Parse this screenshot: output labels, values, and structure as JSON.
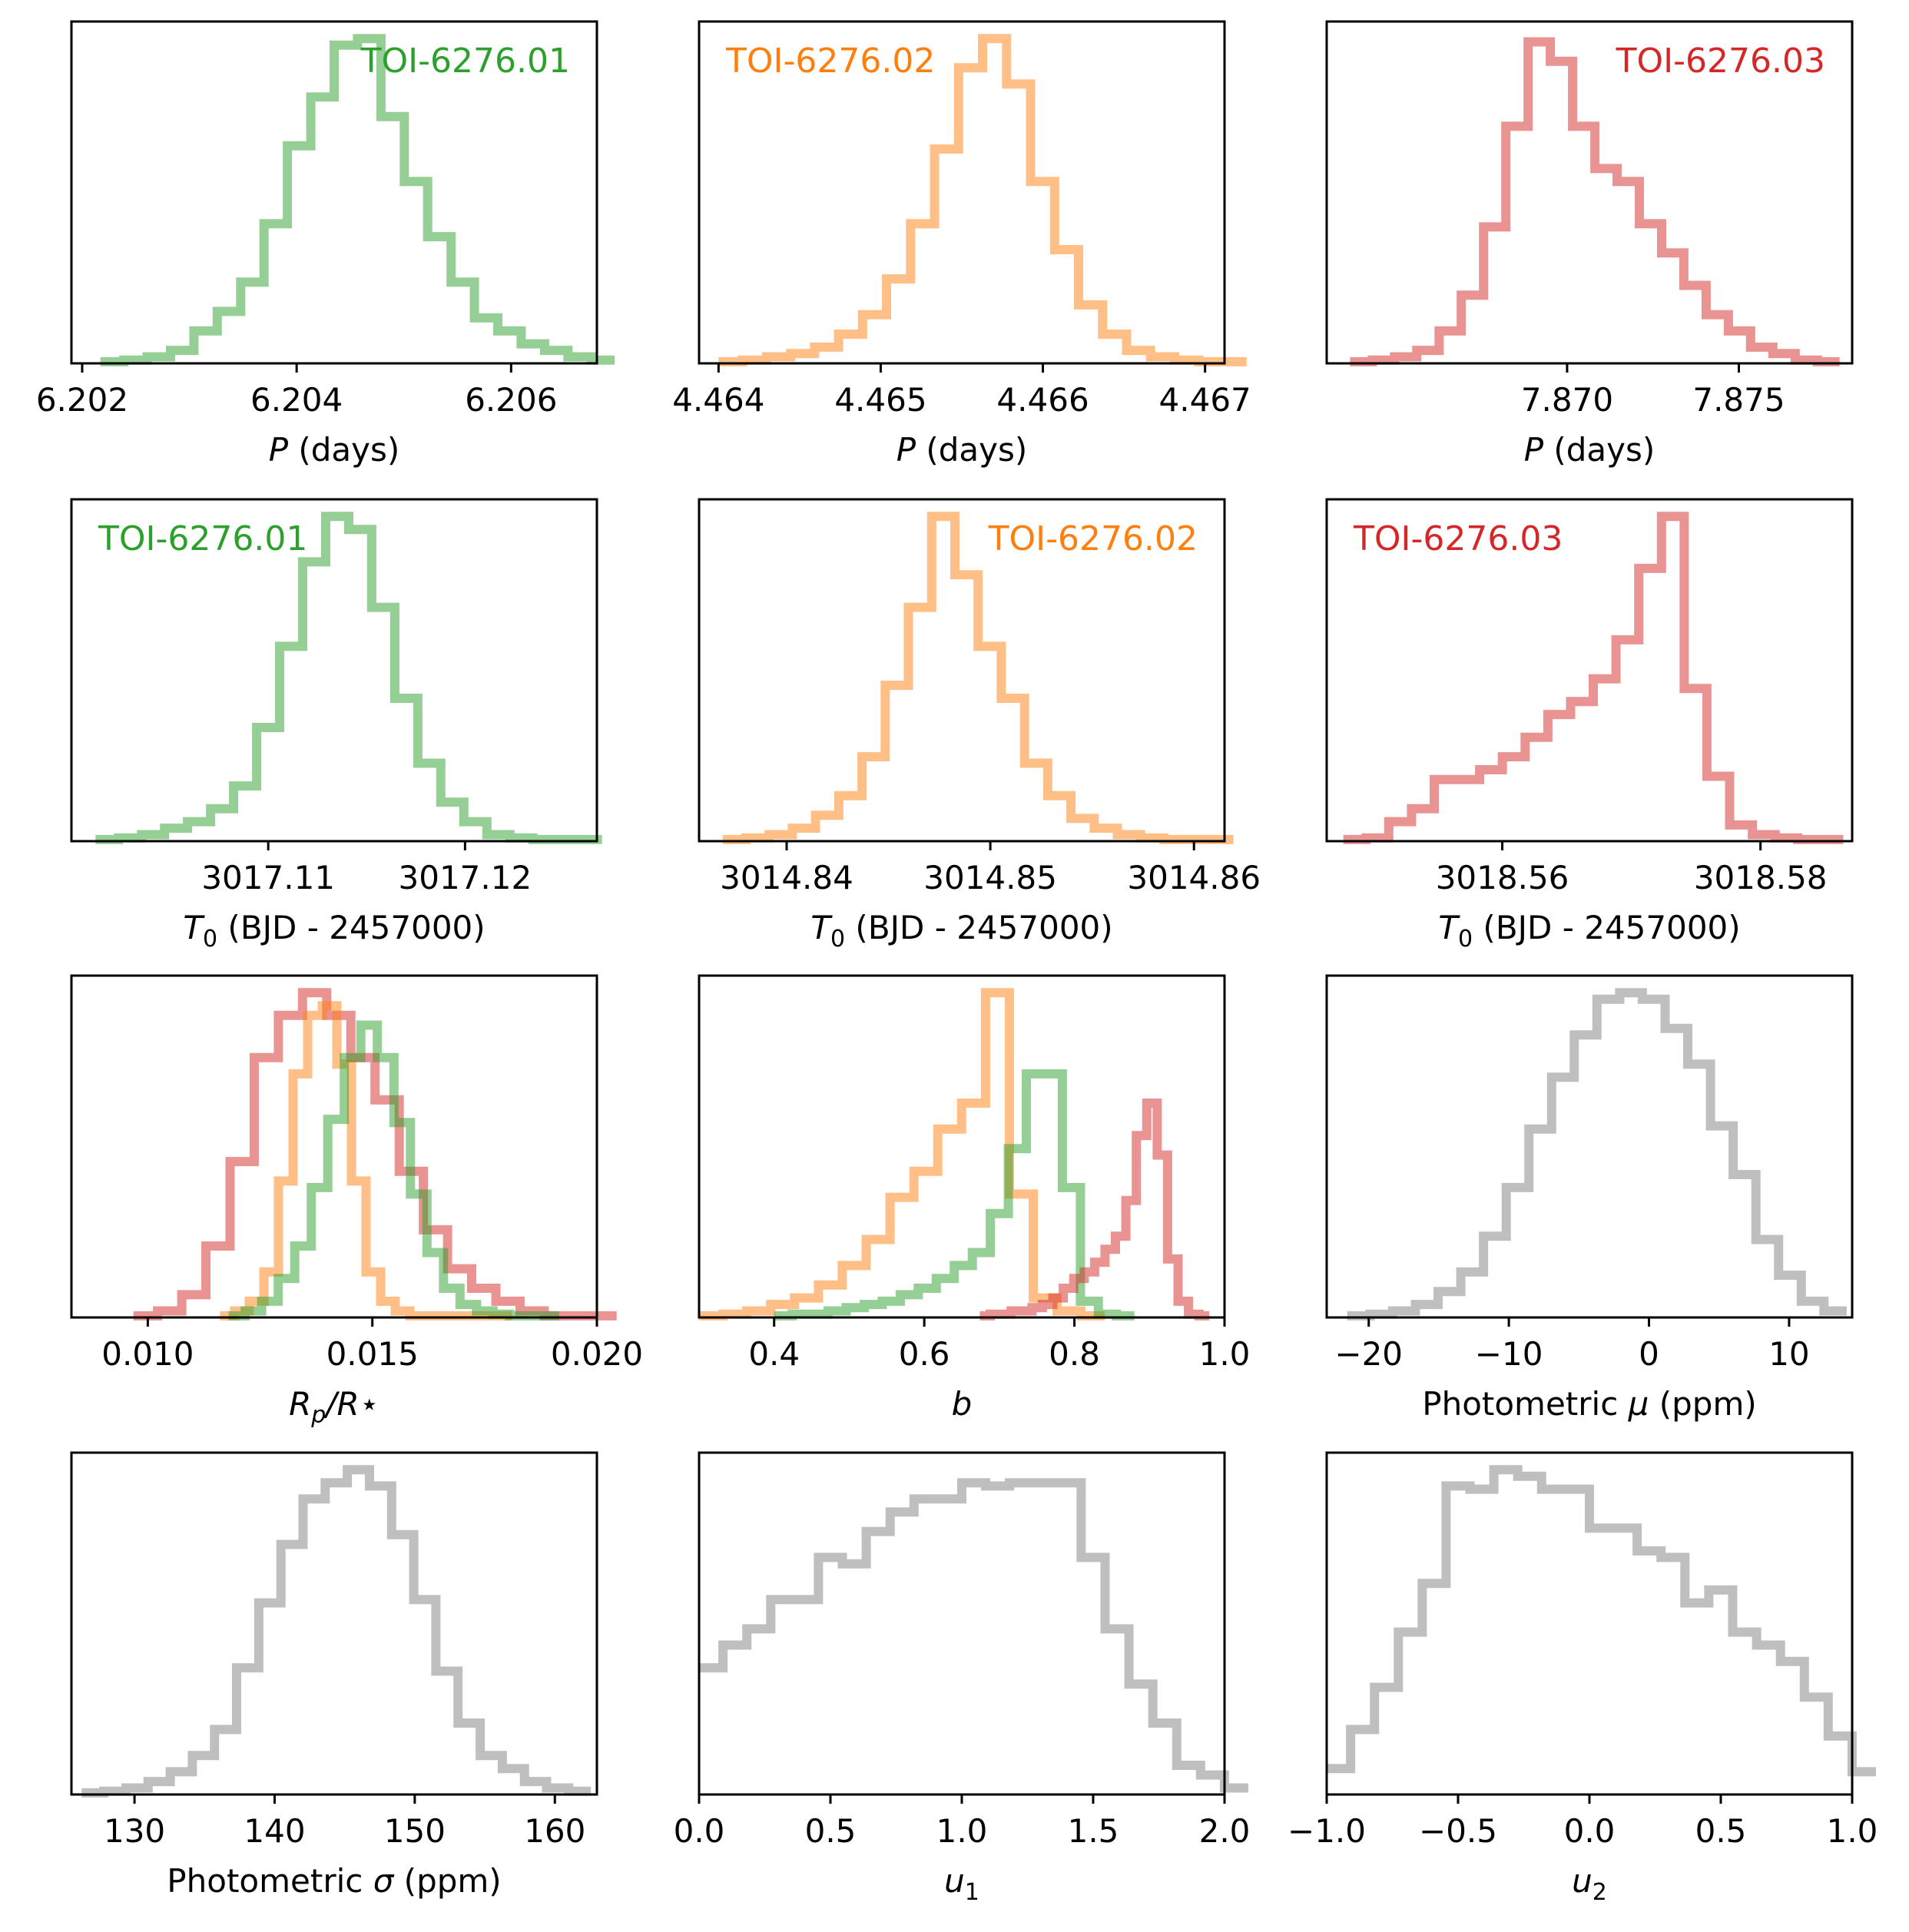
{
  "chart_data": [
    {
      "type": "histogram",
      "id": "p1",
      "row": 0,
      "col": 0,
      "xlabel": {
        "pre": "",
        "main": "P",
        "sub": "",
        "post": " (days)",
        "italic": true
      },
      "xlim": [
        6.2019,
        6.2068
      ],
      "ticks": [
        6.202,
        6.204,
        6.206
      ],
      "tick_labels": [
        "6.202",
        "6.204",
        "6.206"
      ],
      "label": {
        "text": "TOI-6276.01",
        "color": "#2ca02c",
        "position": "top-right"
      },
      "series": [
        {
          "name": "TOI-6276.01",
          "color": "#2ca02c",
          "bin_start": 6.20217,
          "bin_width": 0.000218,
          "counts": [
            0.005,
            0.01,
            0.02,
            0.04,
            0.1,
            0.16,
            0.25,
            0.43,
            0.67,
            0.82,
            0.98,
            1.0,
            0.76,
            0.56,
            0.39,
            0.25,
            0.14,
            0.1,
            0.06,
            0.04,
            0.02,
            0.01
          ]
        }
      ]
    },
    {
      "type": "histogram",
      "id": "p2",
      "row": 0,
      "col": 1,
      "xlabel": {
        "pre": "",
        "main": "P",
        "sub": "",
        "post": " (days)",
        "italic": true
      },
      "xlim": [
        4.46388,
        4.46712
      ],
      "ticks": [
        4.464,
        4.465,
        4.466,
        4.467
      ],
      "tick_labels": [
        "4.464",
        "4.465",
        "4.466",
        "4.467"
      ],
      "label": {
        "text": "TOI-6276.02",
        "color": "#ff7f0e",
        "position": "top-left"
      },
      "series": [
        {
          "name": "TOI-6276.02",
          "color": "#ff7f0e",
          "bin_start": 4.464,
          "bin_width": 0.000148,
          "counts": [
            0.005,
            0.01,
            0.02,
            0.03,
            0.05,
            0.09,
            0.15,
            0.26,
            0.43,
            0.66,
            0.91,
            1.0,
            0.86,
            0.56,
            0.35,
            0.18,
            0.09,
            0.04,
            0.02,
            0.01,
            0.005,
            0.005
          ]
        }
      ]
    },
    {
      "type": "histogram",
      "id": "p3",
      "row": 0,
      "col": 2,
      "xlabel": {
        "pre": "",
        "main": "P",
        "sub": "",
        "post": " (days)",
        "italic": true
      },
      "xlim": [
        7.863,
        7.8783
      ],
      "ticks": [
        7.87,
        7.875
      ],
      "tick_labels": [
        "7.870",
        "7.875"
      ],
      "label": {
        "text": "TOI-6276.03",
        "color": "#d62728",
        "position": "top-right"
      },
      "series": [
        {
          "name": "TOI-6276.03",
          "color": "#d62728",
          "bin_start": 7.86368,
          "bin_width": 0.000648,
          "counts": [
            0.005,
            0.01,
            0.02,
            0.04,
            0.1,
            0.21,
            0.42,
            0.73,
            0.99,
            0.93,
            0.73,
            0.6,
            0.56,
            0.43,
            0.34,
            0.24,
            0.15,
            0.1,
            0.05,
            0.03,
            0.01,
            0.005
          ]
        }
      ]
    },
    {
      "type": "histogram",
      "id": "p4",
      "row": 1,
      "col": 0,
      "xlabel": {
        "pre": "",
        "main": "T",
        "sub": "0",
        "post": " (BJD - 2457000)",
        "italic": true
      },
      "xlim": [
        3017.1,
        3017.1267
      ],
      "ticks": [
        3017.11,
        3017.12
      ],
      "tick_labels": [
        "3017.11",
        "3017.12"
      ],
      "label": {
        "text": "TOI-6276.01",
        "color": "#2ca02c",
        "position": "top-left"
      },
      "series": [
        {
          "name": "TOI-6276.01",
          "color": "#2ca02c",
          "bin_start": 3017.10122,
          "bin_width": 0.00117,
          "counts": [
            0.005,
            0.01,
            0.02,
            0.04,
            0.06,
            0.1,
            0.17,
            0.35,
            0.6,
            0.86,
            1.0,
            0.96,
            0.72,
            0.44,
            0.24,
            0.12,
            0.06,
            0.02,
            0.01,
            0.005,
            0.005,
            0.005
          ]
        }
      ]
    },
    {
      "type": "histogram",
      "id": "p5",
      "row": 1,
      "col": 1,
      "xlabel": {
        "pre": "",
        "main": "T",
        "sub": "0",
        "post": " (BJD - 2457000)",
        "italic": true
      },
      "xlim": [
        3014.8357,
        3014.8615
      ],
      "ticks": [
        3014.84,
        3014.85,
        3014.86
      ],
      "tick_labels": [
        "3014.84",
        "3014.85",
        "3014.86"
      ],
      "label": {
        "text": "TOI-6276.02",
        "color": "#ff7f0e",
        "position": "top-right"
      },
      "series": [
        {
          "name": "TOI-6276.02",
          "color": "#ff7f0e",
          "bin_start": 3014.83686,
          "bin_width": 0.00114,
          "counts": [
            0.005,
            0.01,
            0.02,
            0.04,
            0.08,
            0.14,
            0.26,
            0.48,
            0.72,
            1.0,
            0.82,
            0.6,
            0.44,
            0.24,
            0.14,
            0.07,
            0.04,
            0.02,
            0.01,
            0.005,
            0.005,
            0.005
          ]
        }
      ]
    },
    {
      "type": "histogram",
      "id": "p6",
      "row": 1,
      "col": 2,
      "xlabel": {
        "pre": "",
        "main": "T",
        "sub": "0",
        "post": " (BJD - 2457000)",
        "italic": true
      },
      "xlim": [
        3018.5464,
        3018.5871
      ],
      "ticks": [
        3018.56,
        3018.58
      ],
      "tick_labels": [
        "3018.56",
        "3018.58"
      ],
      "label": {
        "text": "TOI-6276.03",
        "color": "#d62728",
        "position": "top-left"
      },
      "series": [
        {
          "name": "TOI-6276.03",
          "color": "#d62728",
          "bin_start": 3018.54769,
          "bin_width": 0.00176,
          "counts": [
            0.005,
            0.01,
            0.06,
            0.1,
            0.19,
            0.19,
            0.22,
            0.26,
            0.32,
            0.39,
            0.43,
            0.5,
            0.62,
            0.84,
            1.0,
            0.47,
            0.2,
            0.05,
            0.02,
            0.01,
            0.005,
            0.005
          ]
        }
      ]
    },
    {
      "type": "histogram",
      "id": "p7",
      "row": 2,
      "col": 0,
      "xlabel": {
        "pre": "",
        "main": "R",
        "sub": "p",
        "post": "/R⋆",
        "italic": true
      },
      "xlim": [
        0.0083,
        0.02
      ],
      "ticks": [
        0.01,
        0.015,
        0.02
      ],
      "tick_labels": [
        "0.010",
        "0.015",
        "0.020"
      ],
      "label": null,
      "series": [
        {
          "name": "TOI-6276.03",
          "color": "#d62728",
          "bin_start": 0.00968,
          "bin_width": 0.000538,
          "counts": [
            0.005,
            0.02,
            0.07,
            0.22,
            0.48,
            0.8,
            0.93,
            1.0,
            0.93,
            0.8,
            0.67,
            0.45,
            0.27,
            0.15,
            0.09,
            0.05,
            0.02,
            0.005,
            0.005,
            0.005
          ]
        },
        {
          "name": "TOI-6276.02",
          "color": "#ff7f0e",
          "bin_start": 0.01161,
          "bin_width": 0.000325,
          "counts": [
            0.005,
            0.02,
            0.05,
            0.14,
            0.42,
            0.75,
            0.93,
            0.96,
            0.78,
            0.42,
            0.14,
            0.05,
            0.02,
            0.005,
            0.005,
            0.005,
            0.005,
            0.005,
            0.005,
            0.005
          ]
        },
        {
          "name": "TOI-6276.01",
          "color": "#2ca02c",
          "bin_start": 0.0118,
          "bin_width": 0.000368,
          "counts": [
            0.005,
            0.02,
            0.05,
            0.12,
            0.22,
            0.4,
            0.61,
            0.8,
            0.9,
            0.8,
            0.6,
            0.38,
            0.2,
            0.09,
            0.04,
            0.02,
            0.01,
            0.005,
            0.005,
            0.005
          ]
        }
      ]
    },
    {
      "type": "histogram",
      "id": "p8",
      "row": 2,
      "col": 1,
      "xlabel": {
        "pre": "",
        "main": "b",
        "sub": "",
        "post": "",
        "italic": true
      },
      "xlim": [
        0.3,
        1.0
      ],
      "ticks": [
        0.4,
        0.6,
        0.8,
        1.0
      ],
      "tick_labels": [
        "0.4",
        "0.6",
        "0.8",
        "1.0"
      ],
      "label": null,
      "series": [
        {
          "name": "TOI-6276.02",
          "color": "#ff7f0e",
          "bin_start": 0.3,
          "bin_width": 0.0318,
          "counts": [
            0.005,
            0.01,
            0.02,
            0.04,
            0.06,
            0.1,
            0.16,
            0.24,
            0.37,
            0.45,
            0.58,
            0.66,
            1.0,
            0.38,
            0.06,
            0.02,
            0.005
          ]
        },
        {
          "name": "TOI-6276.01",
          "color": "#2ca02c",
          "bin_start": 0.4,
          "bin_width": 0.024,
          "counts": [
            0.005,
            0.01,
            0.01,
            0.02,
            0.03,
            0.04,
            0.05,
            0.07,
            0.09,
            0.12,
            0.16,
            0.2,
            0.32,
            0.52,
            0.75,
            0.75,
            0.4,
            0.05,
            0.01,
            0.005
          ]
        },
        {
          "name": "TOI-6276.03",
          "color": "#d62728",
          "bin_start": 0.674,
          "bin_width": 0.0139,
          "counts": [
            0.005,
            0.01,
            0.01,
            0.02,
            0.02,
            0.03,
            0.04,
            0.06,
            0.09,
            0.12,
            0.14,
            0.17,
            0.21,
            0.25,
            0.36,
            0.56,
            0.66,
            0.5,
            0.18,
            0.05,
            0.01,
            0.005
          ]
        }
      ]
    },
    {
      "type": "histogram",
      "id": "p9",
      "row": 2,
      "col": 2,
      "xlabel": {
        "pre": "Photometric ",
        "main": "μ",
        "sub": "",
        "post": " (ppm)",
        "italic": true
      },
      "xlim": [
        -23,
        14.5
      ],
      "ticks": [
        -20,
        -10,
        0,
        10
      ],
      "tick_labels": [
        "−20",
        "−10",
        "0",
        "10"
      ],
      "label": null,
      "series": [
        {
          "name": "Photometric mu",
          "color": "#7f7f7f",
          "bin_start": -21.53,
          "bin_width": 1.62,
          "counts": [
            0.005,
            0.01,
            0.02,
            0.04,
            0.08,
            0.14,
            0.25,
            0.4,
            0.58,
            0.74,
            0.87,
            0.98,
            1.0,
            0.98,
            0.89,
            0.78,
            0.59,
            0.44,
            0.24,
            0.13,
            0.05,
            0.02
          ]
        }
      ]
    },
    {
      "type": "histogram",
      "id": "p10",
      "row": 3,
      "col": 0,
      "xlabel": {
        "pre": "Photometric ",
        "main": "σ",
        "sub": "",
        "post": " (ppm)",
        "italic": true
      },
      "xlim": [
        125.5,
        163
      ],
      "ticks": [
        130,
        140,
        150,
        160
      ],
      "tick_labels": [
        "130",
        "140",
        "150",
        "160"
      ],
      "label": null,
      "series": [
        {
          "name": "Photometric sigma",
          "color": "#7f7f7f",
          "bin_start": 126.23,
          "bin_width": 1.58,
          "counts": [
            0.005,
            0.01,
            0.02,
            0.04,
            0.07,
            0.12,
            0.2,
            0.39,
            0.59,
            0.77,
            0.91,
            0.96,
            1.0,
            0.95,
            0.8,
            0.6,
            0.38,
            0.22,
            0.12,
            0.08,
            0.04,
            0.02,
            0.01
          ]
        }
      ]
    },
    {
      "type": "histogram",
      "id": "p11",
      "row": 3,
      "col": 1,
      "xlabel": {
        "pre": "",
        "main": "u",
        "sub": "1",
        "post": "",
        "italic": true
      },
      "xlim": [
        0.0,
        2.0
      ],
      "ticks": [
        0.0,
        0.5,
        1.0,
        1.5,
        2.0
      ],
      "tick_labels": [
        "0.0",
        "0.5",
        "1.0",
        "1.5",
        "2.0"
      ],
      "label": null,
      "series": [
        {
          "name": "u1",
          "color": "#7f7f7f",
          "bin_start": 0.0,
          "bin_width": 0.0909,
          "counts": [
            0.39,
            0.46,
            0.51,
            0.6,
            0.6,
            0.73,
            0.71,
            0.81,
            0.87,
            0.91,
            0.91,
            0.96,
            0.95,
            0.96,
            0.96,
            0.96,
            0.73,
            0.51,
            0.34,
            0.22,
            0.09,
            0.06,
            0.02
          ]
        }
      ]
    },
    {
      "type": "histogram",
      "id": "p12",
      "row": 3,
      "col": 2,
      "xlabel": {
        "pre": "",
        "main": "u",
        "sub": "2",
        "post": "",
        "italic": true
      },
      "xlim": [
        -1.0,
        1.0
      ],
      "ticks": [
        -1.0,
        -0.5,
        0.0,
        0.5,
        1.0
      ],
      "tick_labels": [
        "−1.0",
        "−0.5",
        "0.0",
        "0.5",
        "1.0"
      ],
      "label": null,
      "series": [
        {
          "name": "u2",
          "color": "#7f7f7f",
          "bin_start": -1.0,
          "bin_width": 0.0909,
          "counts": [
            0.08,
            0.2,
            0.33,
            0.5,
            0.65,
            0.95,
            0.94,
            1.0,
            0.98,
            0.94,
            0.94,
            0.82,
            0.82,
            0.75,
            0.73,
            0.59,
            0.63,
            0.5,
            0.46,
            0.41,
            0.3,
            0.18,
            0.07
          ]
        }
      ]
    }
  ]
}
